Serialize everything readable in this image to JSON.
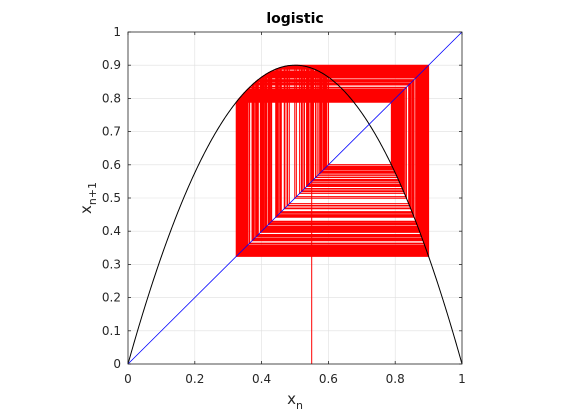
{
  "chart_data": {
    "type": "line",
    "title": "logistic",
    "xlabel": {
      "base": "x",
      "sub": "n"
    },
    "ylabel": {
      "base": "x",
      "sub": "n+1"
    },
    "xlim": [
      0,
      1
    ],
    "ylim": [
      0,
      1
    ],
    "xticks": [
      0,
      0.2,
      0.4,
      0.6,
      0.8,
      1
    ],
    "xtick_labels": [
      "0",
      "0.2",
      "0.4",
      "0.6",
      "0.8",
      "1"
    ],
    "yticks": [
      0,
      0.1,
      0.2,
      0.3,
      0.4,
      0.5,
      0.6,
      0.7,
      0.8,
      0.9,
      1
    ],
    "ytick_labels": [
      "0",
      "0.1",
      "0.2",
      "0.3",
      "0.4",
      "0.5",
      "0.6",
      "0.7",
      "0.8",
      "0.9",
      "1"
    ],
    "grid": true,
    "map": {
      "name": "logistic",
      "r": 3.6
    },
    "cobweb": {
      "x0": 0.55,
      "iterations": 300,
      "color": "#ff0000"
    },
    "series": [
      {
        "color": "#000000",
        "kind": "map-curve"
      },
      {
        "color": "#0000ff",
        "kind": "identity-line",
        "points": [
          [
            0,
            0
          ],
          [
            1,
            1
          ]
        ]
      }
    ]
  }
}
